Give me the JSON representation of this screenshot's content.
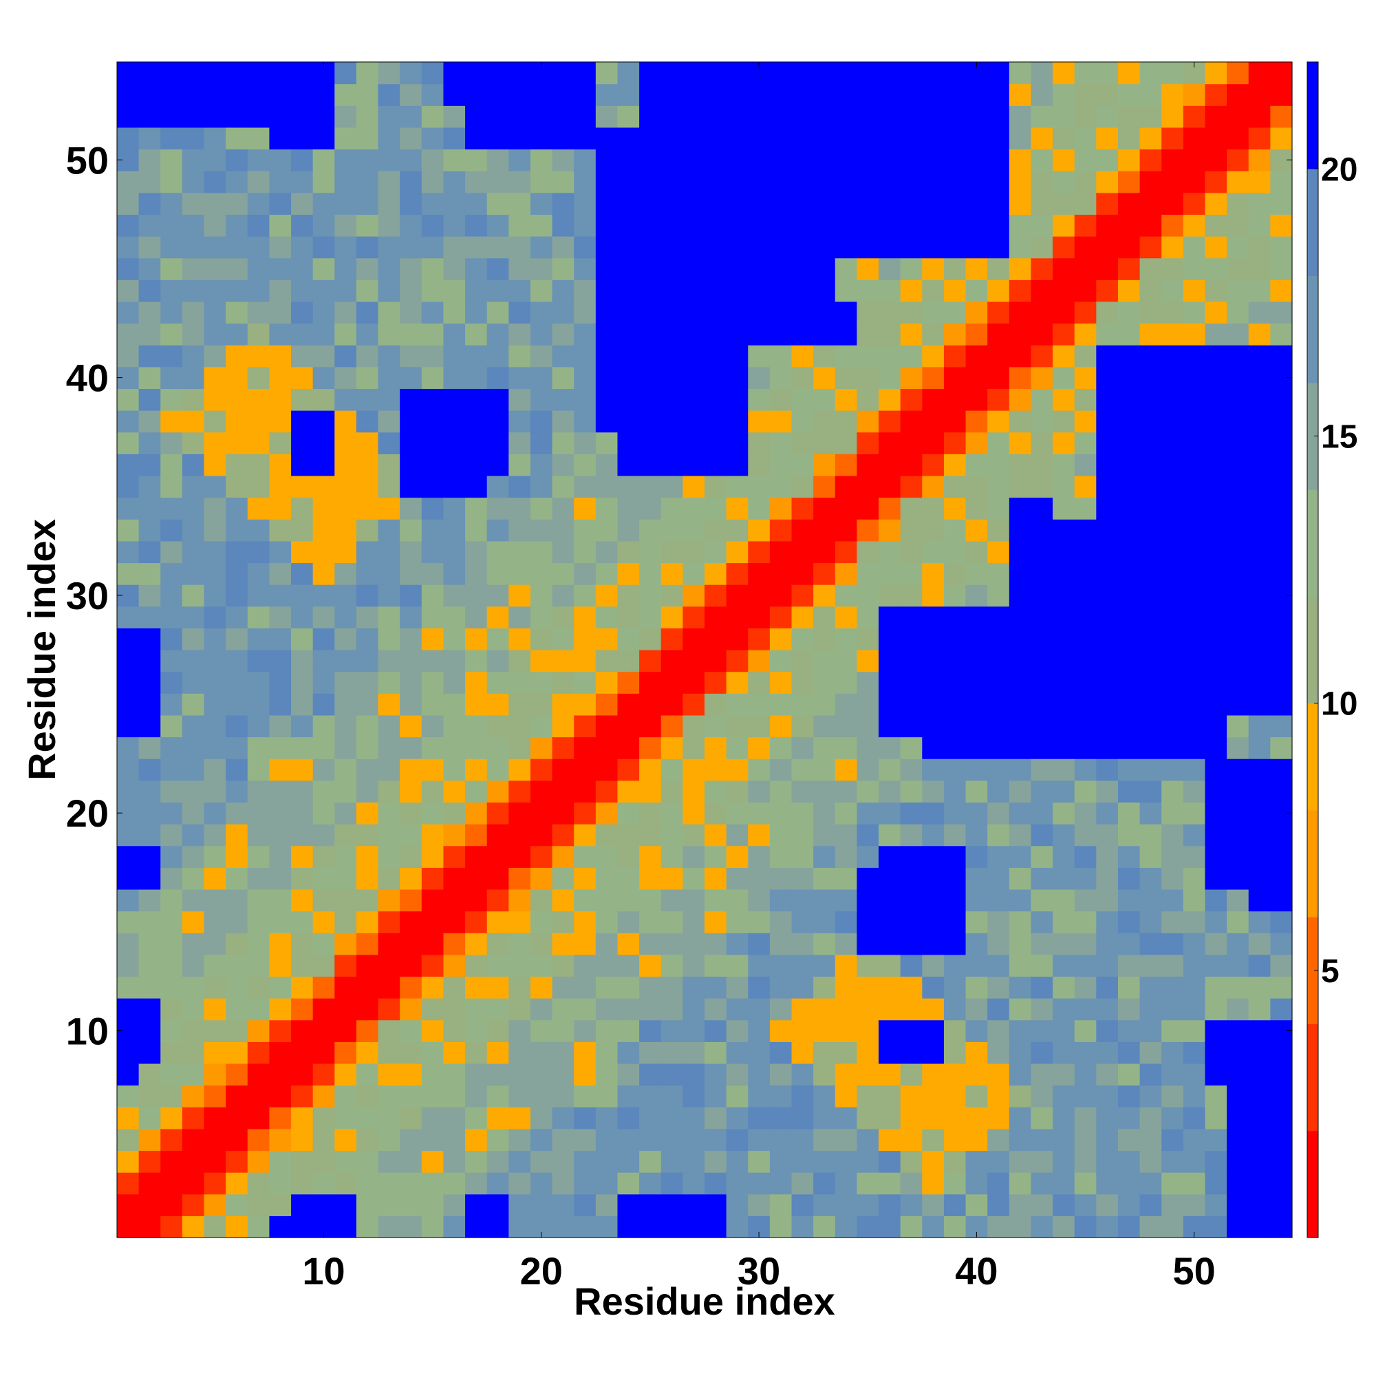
{
  "chart_data": {
    "type": "heatmap",
    "title": "",
    "xlabel": "Residue index",
    "ylabel": "Residue index",
    "n_residues": 54,
    "xlim": [
      1,
      54
    ],
    "ylim": [
      1,
      54
    ],
    "x_ticks": [
      10,
      20,
      30,
      40,
      50
    ],
    "y_ticks": [
      10,
      20,
      30,
      40,
      50
    ],
    "colorbar": {
      "ticks": [
        5,
        10,
        15,
        20
      ],
      "range": [
        0,
        22
      ],
      "bins": [
        {
          "max": 2,
          "color": "#ff0000"
        },
        {
          "max": 4,
          "color": "#ff3300"
        },
        {
          "max": 6,
          "color": "#ff6600"
        },
        {
          "max": 8,
          "color": "#ff9900"
        },
        {
          "max": 10,
          "color": "#ffaa00"
        },
        {
          "max": 12,
          "color": "#99b080"
        },
        {
          "max": 14,
          "color": "#94b488"
        },
        {
          "max": 16,
          "color": "#86a49c"
        },
        {
          "max": 18,
          "color": "#6b93b4"
        },
        {
          "max": 20,
          "color": "#5b87bc"
        },
        {
          "max": 22,
          "color": "#0000ff"
        }
      ]
    },
    "pattern": {
      "description_of_encoding": "symmetric pairwise residue distance map; values estimated from colour",
      "diagonal_value": 0,
      "near_diagonal_values": [
        3,
        6,
        9,
        11
      ],
      "background_value": 17,
      "far_value": 22,
      "blue_blocks": [
        {
          "x": [
            1,
            7
          ],
          "y": [
            53,
            54
          ]
        },
        {
          "x": [
            8,
            10
          ],
          "y": [
            51,
            54
          ]
        },
        {
          "x": [
            17,
            22
          ],
          "y": [
            51,
            54
          ]
        },
        {
          "x": [
            27,
            41
          ],
          "y": [
            46,
            54
          ]
        },
        {
          "x": [
            24,
            29
          ],
          "y": [
            36,
            46
          ]
        },
        {
          "x": [
            30,
            34
          ],
          "y": [
            42,
            43
          ]
        },
        {
          "x": [
            16,
            18
          ],
          "y": [
            36,
            39
          ]
        },
        {
          "x": [
            9,
            10
          ],
          "y": [
            36,
            38
          ]
        },
        {
          "x": [
            1,
            2
          ],
          "y": [
            24,
            28
          ]
        },
        {
          "x": [
            1,
            2
          ],
          "y": [
            9,
            11
          ]
        },
        {
          "x": [
            46,
            54
          ],
          "y": [
            25,
            40
          ]
        },
        {
          "x": [
            38,
            51
          ],
          "y": [
            23,
            27
          ]
        },
        {
          "x": [
            42,
            45
          ],
          "y": [
            28,
            33
          ]
        },
        {
          "x": [
            35,
            39
          ],
          "y": [
            14,
            17
          ]
        },
        {
          "x": [
            37,
            38
          ],
          "y": [
            9,
            10
          ]
        },
        {
          "x": [
            52,
            54
          ],
          "y": [
            1,
            7
          ]
        },
        {
          "x": [
            52,
            54
          ],
          "y": [
            8,
            9
          ]
        },
        {
          "x": [
            53,
            54
          ],
          "y": [
            16,
            22
          ]
        },
        {
          "x": [
            17,
            18
          ],
          "y": [
            1,
            2
          ]
        },
        {
          "x": [
            24,
            27
          ],
          "y": [
            1,
            2
          ]
        },
        {
          "x": [
            8,
            10
          ],
          "y": [
            1,
            1
          ]
        }
      ]
    }
  },
  "colors": {
    "blue": "#0000ff",
    "steel": "#5b87bc",
    "grey_blue": "#86a49c",
    "sage": "#99b080",
    "orange": "#ffaa00",
    "dark_orange": "#ff6600",
    "red": "#ff0000"
  }
}
